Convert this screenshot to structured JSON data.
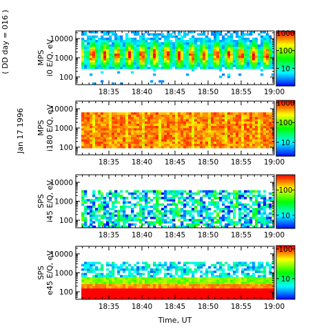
{
  "figure": {
    "date_label": "Jan 17 1996",
    "day_label": "( DD day = 016 )",
    "xlabel": "Time, UT"
  },
  "chart_data": [
    {
      "type": "heatmap",
      "panel": "i0-mps",
      "ylabel_instrument": "MPS",
      "ylabel": "i0 E/Q, eV",
      "x_ticks": [
        "18:35",
        "18:40",
        "18:45",
        "18:50",
        "18:55",
        "19:00"
      ],
      "x_range": [
        "18:30",
        "19:00"
      ],
      "y_scale": "log",
      "y_range": [
        40,
        25000
      ],
      "y_ticks": [
        100,
        1000,
        10000
      ],
      "y_tick_labels": [
        "100",
        "1000",
        "10000"
      ],
      "colorbar_scale": "log",
      "colorbar_range": [
        1,
        1300
      ],
      "colorbar_ticks": [
        10,
        100,
        1000
      ],
      "colorbar_tick_labels": [
        "10",
        "100",
        "1000"
      ],
      "pattern": "periodic"
    },
    {
      "type": "heatmap",
      "panel": "i180-mps",
      "ylabel_instrument": "MPS",
      "ylabel": "i180 E/Q, eV",
      "x_ticks": [
        "18:35",
        "18:40",
        "18:45",
        "18:50",
        "18:55",
        "19:00"
      ],
      "x_range": [
        "18:30",
        "19:00"
      ],
      "y_scale": "log",
      "y_range": [
        40,
        25000
      ],
      "y_ticks": [
        100,
        1000,
        10000
      ],
      "y_tick_labels": [
        "100",
        "1000",
        "10000"
      ],
      "colorbar_scale": "log",
      "colorbar_range": [
        2,
        1300
      ],
      "colorbar_ticks": [
        10,
        100,
        1000
      ],
      "colorbar_tick_labels": [
        "10",
        "100",
        "1000"
      ],
      "pattern": "dense-high"
    },
    {
      "type": "heatmap",
      "panel": "i45-sps",
      "ylabel_instrument": "SPS",
      "ylabel": "i45 E/Q, eV",
      "x_ticks": [
        "18:35",
        "18:40",
        "18:45",
        "18:50",
        "18:55",
        "19:00"
      ],
      "x_range": [
        "18:30",
        "19:00"
      ],
      "y_scale": "log",
      "y_range": [
        40,
        25000
      ],
      "y_ticks": [
        100,
        1000,
        10000
      ],
      "y_tick_labels": [
        "100",
        "1000",
        "10000"
      ],
      "colorbar_scale": "log",
      "colorbar_range": [
        3,
        400
      ],
      "colorbar_ticks": [
        10,
        100
      ],
      "colorbar_tick_labels": [
        "10",
        "100"
      ],
      "pattern": "sparse"
    },
    {
      "type": "heatmap",
      "panel": "e45-sps",
      "ylabel_instrument": "SPS",
      "ylabel": "e45 E/Q, eV",
      "x_ticks": [
        "18:35",
        "18:40",
        "18:45",
        "18:50",
        "18:55",
        "19:00"
      ],
      "x_range": [
        "18:30",
        "19:00"
      ],
      "y_scale": "log",
      "y_range": [
        40,
        25000
      ],
      "y_ticks": [
        100,
        1000,
        10000
      ],
      "y_tick_labels": [
        "100",
        "1000",
        "10000"
      ],
      "colorbar_scale": "log",
      "colorbar_range": [
        2,
        130
      ],
      "colorbar_ticks": [
        10,
        100
      ],
      "colorbar_tick_labels": [
        "10",
        "100"
      ],
      "pattern": "electron"
    }
  ]
}
